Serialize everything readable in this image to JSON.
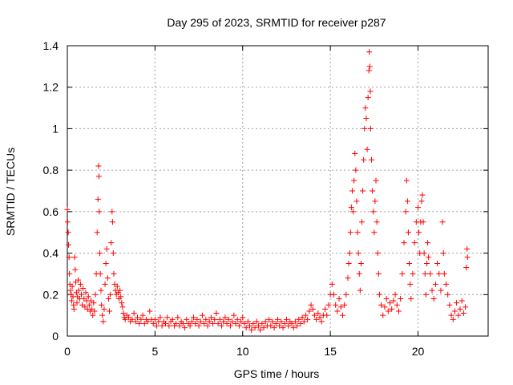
{
  "chart_data": {
    "type": "scatter",
    "title": "Day 295 of 2023, SRMTID for receiver p287",
    "xlabel": "GPS time / hours",
    "ylabel": "SRMTID / TECUs",
    "xlim": [
      0,
      24
    ],
    "ylim": [
      0,
      1.4
    ],
    "x_ticks": [
      0,
      5,
      10,
      15,
      20
    ],
    "x_tick_labels": [
      "0",
      "5",
      "10",
      "15",
      "20"
    ],
    "y_ticks": [
      0,
      0.2,
      0.4,
      0.6,
      0.8,
      1.0,
      1.2,
      1.4
    ],
    "y_tick_labels": [
      "0",
      "0.2",
      "0.4",
      "0.6",
      "0.8",
      "1",
      "1.2",
      "1.4"
    ],
    "grid": true,
    "marker": "+",
    "marker_color": "#ff0000",
    "series": [
      {
        "name": "SRMTID",
        "points": [
          [
            0.0,
            0.61
          ],
          [
            0.02,
            0.55
          ],
          [
            0.05,
            0.5
          ],
          [
            0.07,
            0.44
          ],
          [
            0.1,
            0.38
          ],
          [
            0.12,
            0.3
          ],
          [
            0.15,
            0.25
          ],
          [
            0.18,
            0.22
          ],
          [
            0.22,
            0.2
          ],
          [
            0.25,
            0.17
          ],
          [
            0.28,
            0.24
          ],
          [
            0.32,
            0.19
          ],
          [
            0.35,
            0.15
          ],
          [
            0.38,
            0.13
          ],
          [
            0.42,
            0.38
          ],
          [
            0.45,
            0.32
          ],
          [
            0.48,
            0.26
          ],
          [
            0.52,
            0.21
          ],
          [
            0.55,
            0.16
          ],
          [
            0.58,
            0.19
          ],
          [
            0.62,
            0.27
          ],
          [
            0.65,
            0.22
          ],
          [
            0.7,
            0.18
          ],
          [
            0.75,
            0.25
          ],
          [
            0.8,
            0.2
          ],
          [
            0.85,
            0.15
          ],
          [
            0.9,
            0.23
          ],
          [
            0.95,
            0.18
          ],
          [
            1.0,
            0.14
          ],
          [
            1.05,
            0.21
          ],
          [
            1.1,
            0.17
          ],
          [
            1.15,
            0.13
          ],
          [
            1.2,
            0.19
          ],
          [
            1.25,
            0.15
          ],
          [
            1.3,
            0.12
          ],
          [
            1.35,
            0.17
          ],
          [
            1.4,
            0.13
          ],
          [
            1.45,
            0.1
          ],
          [
            1.5,
            0.16
          ],
          [
            1.55,
            0.12
          ],
          [
            1.6,
            0.2
          ],
          [
            1.65,
            0.3
          ],
          [
            1.7,
            0.5
          ],
          [
            1.75,
            0.66
          ],
          [
            1.78,
            0.82
          ],
          [
            1.8,
            0.77
          ],
          [
            1.82,
            0.6
          ],
          [
            1.85,
            0.4
          ],
          [
            1.88,
            0.3
          ],
          [
            1.92,
            0.22
          ],
          [
            1.95,
            0.15
          ],
          [
            2.0,
            0.1
          ],
          [
            2.05,
            0.07
          ],
          [
            2.1,
            0.13
          ],
          [
            2.15,
            0.25
          ],
          [
            2.2,
            0.35
          ],
          [
            2.25,
            0.42
          ],
          [
            2.3,
            0.28
          ],
          [
            2.35,
            0.18
          ],
          [
            2.4,
            0.12
          ],
          [
            2.45,
            0.2
          ],
          [
            2.5,
            0.45
          ],
          [
            2.55,
            0.6
          ],
          [
            2.58,
            0.55
          ],
          [
            2.62,
            0.4
          ],
          [
            2.65,
            0.3
          ],
          [
            2.7,
            0.25
          ],
          [
            2.75,
            0.22
          ],
          [
            2.8,
            0.2
          ],
          [
            2.85,
            0.24
          ],
          [
            2.9,
            0.21
          ],
          [
            2.95,
            0.18
          ],
          [
            3.0,
            0.22
          ],
          [
            3.05,
            0.19
          ],
          [
            3.1,
            0.16
          ],
          [
            3.15,
            0.14
          ],
          [
            3.2,
            0.11
          ],
          [
            3.25,
            0.09
          ],
          [
            3.3,
            0.08
          ],
          [
            3.4,
            0.1
          ],
          [
            3.5,
            0.09
          ],
          [
            3.6,
            0.07
          ],
          [
            3.7,
            0.08
          ],
          [
            3.8,
            0.11
          ],
          [
            3.9,
            0.07
          ],
          [
            4.0,
            0.09
          ],
          [
            4.1,
            0.06
          ],
          [
            4.2,
            0.08
          ],
          [
            4.3,
            0.1
          ],
          [
            4.4,
            0.06
          ],
          [
            4.5,
            0.08
          ],
          [
            4.6,
            0.07
          ],
          [
            4.7,
            0.12
          ],
          [
            4.8,
            0.08
          ],
          [
            4.9,
            0.06
          ],
          [
            5.0,
            0.08
          ],
          [
            5.1,
            0.05
          ],
          [
            5.2,
            0.07
          ],
          [
            5.3,
            0.09
          ],
          [
            5.4,
            0.05
          ],
          [
            5.5,
            0.07
          ],
          [
            5.6,
            0.06
          ],
          [
            5.7,
            0.09
          ],
          [
            5.8,
            0.05
          ],
          [
            5.9,
            0.07
          ],
          [
            6.0,
            0.08
          ],
          [
            6.1,
            0.05
          ],
          [
            6.2,
            0.06
          ],
          [
            6.3,
            0.09
          ],
          [
            6.4,
            0.05
          ],
          [
            6.5,
            0.07
          ],
          [
            6.6,
            0.06
          ],
          [
            6.7,
            0.04
          ],
          [
            6.8,
            0.08
          ],
          [
            6.9,
            0.06
          ],
          [
            7.0,
            0.05
          ],
          [
            7.1,
            0.07
          ],
          [
            7.2,
            0.09
          ],
          [
            7.3,
            0.06
          ],
          [
            7.4,
            0.08
          ],
          [
            7.5,
            0.05
          ],
          [
            7.6,
            0.07
          ],
          [
            7.7,
            0.1
          ],
          [
            7.8,
            0.06
          ],
          [
            7.9,
            0.08
          ],
          [
            8.0,
            0.05
          ],
          [
            8.1,
            0.07
          ],
          [
            8.2,
            0.09
          ],
          [
            8.3,
            0.06
          ],
          [
            8.4,
            0.08
          ],
          [
            8.5,
            0.11
          ],
          [
            8.6,
            0.06
          ],
          [
            8.7,
            0.08
          ],
          [
            8.8,
            0.05
          ],
          [
            8.9,
            0.07
          ],
          [
            9.0,
            0.09
          ],
          [
            9.1,
            0.06
          ],
          [
            9.2,
            0.08
          ],
          [
            9.3,
            0.05
          ],
          [
            9.4,
            0.07
          ],
          [
            9.5,
            0.1
          ],
          [
            9.6,
            0.06
          ],
          [
            9.7,
            0.08
          ],
          [
            9.8,
            0.05
          ],
          [
            9.9,
            0.07
          ],
          [
            10.0,
            0.09
          ],
          [
            10.1,
            0.06
          ],
          [
            10.2,
            0.04
          ],
          [
            10.3,
            0.07
          ],
          [
            10.4,
            0.05
          ],
          [
            10.5,
            0.03
          ],
          [
            10.6,
            0.06
          ],
          [
            10.7,
            0.04
          ],
          [
            10.8,
            0.07
          ],
          [
            10.9,
            0.05
          ],
          [
            11.0,
            0.03
          ],
          [
            11.1,
            0.06
          ],
          [
            11.2,
            0.04
          ],
          [
            11.3,
            0.07
          ],
          [
            11.4,
            0.05
          ],
          [
            11.5,
            0.08
          ],
          [
            11.6,
            0.05
          ],
          [
            11.7,
            0.07
          ],
          [
            11.8,
            0.04
          ],
          [
            11.9,
            0.06
          ],
          [
            12.0,
            0.08
          ],
          [
            12.1,
            0.05
          ],
          [
            12.2,
            0.07
          ],
          [
            12.3,
            0.04
          ],
          [
            12.4,
            0.06
          ],
          [
            12.5,
            0.08
          ],
          [
            12.6,
            0.05
          ],
          [
            12.7,
            0.07
          ],
          [
            12.8,
            0.06
          ],
          [
            12.9,
            0.04
          ],
          [
            13.0,
            0.07
          ],
          [
            13.1,
            0.05
          ],
          [
            13.2,
            0.08
          ],
          [
            13.3,
            0.06
          ],
          [
            13.4,
            0.09
          ],
          [
            13.5,
            0.07
          ],
          [
            13.6,
            0.1
          ],
          [
            13.7,
            0.08
          ],
          [
            13.8,
            0.12
          ],
          [
            13.9,
            0.15
          ],
          [
            14.0,
            0.13
          ],
          [
            14.1,
            0.1
          ],
          [
            14.2,
            0.08
          ],
          [
            14.3,
            0.11
          ],
          [
            14.4,
            0.09
          ],
          [
            14.5,
            0.07
          ],
          [
            14.6,
            0.1
          ],
          [
            14.7,
            0.13
          ],
          [
            14.8,
            0.1
          ],
          [
            14.9,
            0.15
          ],
          [
            15.0,
            0.2
          ],
          [
            15.1,
            0.25
          ],
          [
            15.2,
            0.2
          ],
          [
            15.3,
            0.15
          ],
          [
            15.4,
            0.12
          ],
          [
            15.5,
            0.18
          ],
          [
            15.6,
            0.14
          ],
          [
            15.7,
            0.1
          ],
          [
            15.8,
            0.15
          ],
          [
            15.9,
            0.2
          ],
          [
            16.0,
            0.28
          ],
          [
            16.05,
            0.35
          ],
          [
            16.1,
            0.4
          ],
          [
            16.15,
            0.5
          ],
          [
            16.2,
            0.62
          ],
          [
            16.25,
            0.7
          ],
          [
            16.3,
            0.6
          ],
          [
            16.35,
            0.75
          ],
          [
            16.4,
            0.88
          ],
          [
            16.45,
            0.8
          ],
          [
            16.5,
            0.65
          ],
          [
            16.55,
            0.5
          ],
          [
            16.6,
            0.4
          ],
          [
            16.65,
            0.3
          ],
          [
            16.7,
            0.22
          ],
          [
            16.75,
            0.35
          ],
          [
            16.8,
            0.55
          ],
          [
            16.85,
            0.7
          ],
          [
            16.9,
            0.85
          ],
          [
            16.95,
            1.0
          ],
          [
            17.0,
            1.1
          ],
          [
            17.05,
            1.05
          ],
          [
            17.1,
            0.9
          ],
          [
            17.15,
            1.15
          ],
          [
            17.2,
            1.28
          ],
          [
            17.22,
            1.37
          ],
          [
            17.25,
            1.3
          ],
          [
            17.28,
            1.18
          ],
          [
            17.3,
            1.0
          ],
          [
            17.35,
            0.85
          ],
          [
            17.4,
            0.7
          ],
          [
            17.45,
            0.6
          ],
          [
            17.5,
            0.5
          ],
          [
            17.55,
            0.65
          ],
          [
            17.6,
            0.75
          ],
          [
            17.65,
            0.55
          ],
          [
            17.7,
            0.4
          ],
          [
            17.75,
            0.3
          ],
          [
            17.8,
            0.2
          ],
          [
            17.9,
            0.15
          ],
          [
            18.0,
            0.1
          ],
          [
            18.1,
            0.14
          ],
          [
            18.2,
            0.18
          ],
          [
            18.3,
            0.12
          ],
          [
            18.4,
            0.16
          ],
          [
            18.5,
            0.13
          ],
          [
            18.6,
            0.17
          ],
          [
            18.7,
            0.2
          ],
          [
            18.8,
            0.15
          ],
          [
            18.9,
            0.12
          ],
          [
            19.0,
            0.18
          ],
          [
            19.1,
            0.3
          ],
          [
            19.2,
            0.45
          ],
          [
            19.3,
            0.6
          ],
          [
            19.35,
            0.75
          ],
          [
            19.4,
            0.65
          ],
          [
            19.45,
            0.5
          ],
          [
            19.5,
            0.35
          ],
          [
            19.55,
            0.25
          ],
          [
            19.6,
            0.18
          ],
          [
            19.7,
            0.3
          ],
          [
            19.8,
            0.45
          ],
          [
            19.9,
            0.55
          ],
          [
            20.0,
            0.62
          ],
          [
            20.05,
            0.5
          ],
          [
            20.1,
            0.4
          ],
          [
            20.15,
            0.55
          ],
          [
            20.2,
            0.65
          ],
          [
            20.25,
            0.68
          ],
          [
            20.3,
            0.55
          ],
          [
            20.35,
            0.4
          ],
          [
            20.4,
            0.3
          ],
          [
            20.45,
            0.2
          ],
          [
            20.5,
            0.35
          ],
          [
            20.55,
            0.45
          ],
          [
            20.6,
            0.38
          ],
          [
            20.7,
            0.3
          ],
          [
            20.8,
            0.22
          ],
          [
            20.9,
            0.18
          ],
          [
            21.0,
            0.25
          ],
          [
            21.1,
            0.35
          ],
          [
            21.2,
            0.3
          ],
          [
            21.3,
            0.22
          ],
          [
            21.4,
            0.55
          ],
          [
            21.45,
            0.4
          ],
          [
            21.5,
            0.3
          ],
          [
            21.6,
            0.25
          ],
          [
            21.7,
            0.2
          ],
          [
            21.8,
            0.15
          ],
          [
            21.9,
            0.1
          ],
          [
            22.0,
            0.08
          ],
          [
            22.1,
            0.12
          ],
          [
            22.2,
            0.16
          ],
          [
            22.3,
            0.1
          ],
          [
            22.4,
            0.13
          ],
          [
            22.5,
            0.17
          ],
          [
            22.6,
            0.11
          ],
          [
            22.7,
            0.14
          ],
          [
            22.75,
            0.33
          ],
          [
            22.8,
            0.42
          ],
          [
            22.82,
            0.38
          ]
        ]
      }
    ]
  }
}
